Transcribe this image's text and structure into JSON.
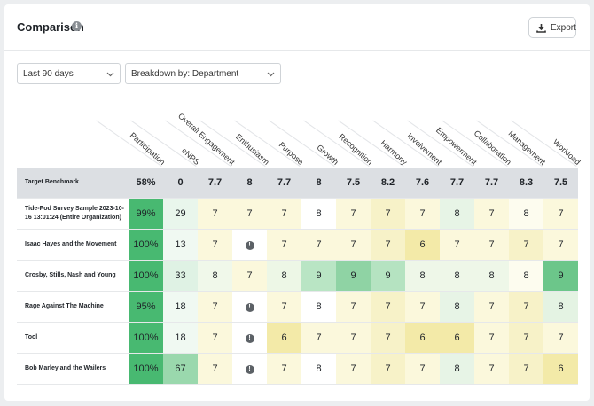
{
  "header": {
    "title": "Comparison",
    "export_label": "Export"
  },
  "filters": {
    "range": "Last 90 days",
    "breakdown": "Breakdown by: Department"
  },
  "columns": [
    "Participation",
    "eNPS",
    "Overall Engagement",
    "Enthusiasm",
    "Purpose",
    "Growth",
    "Recognition",
    "Harmony",
    "Involvement",
    "Empowerment",
    "Collaboration",
    "Management",
    "Workload"
  ],
  "benchmark": {
    "label": "Target Benchmark",
    "values": [
      "58%",
      "0",
      "7.7",
      "8",
      "7.7",
      "8",
      "7.5",
      "8.2",
      "7.6",
      "7.7",
      "7.7",
      "8.3",
      "7.5"
    ]
  },
  "rows": [
    {
      "label": "Tide-Pod Survey Sample 2023-10-16 13:01:24 (Entire Organization)",
      "values": [
        "99%",
        "29",
        "7",
        "7",
        "7",
        "8",
        "7",
        "7",
        "7",
        "8",
        "7",
        "8",
        "7"
      ]
    },
    {
      "label": "Isaac Hayes and the Movement",
      "values": [
        "100%",
        "13",
        "7",
        "!",
        "7",
        "7",
        "7",
        "7",
        "6",
        "7",
        "7",
        "7",
        "7"
      ]
    },
    {
      "label": "Crosby, Stills, Nash and Young",
      "values": [
        "100%",
        "33",
        "8",
        "7",
        "8",
        "9",
        "9",
        "9",
        "8",
        "8",
        "8",
        "8",
        "9"
      ]
    },
    {
      "label": "Rage Against The Machine",
      "values": [
        "95%",
        "18",
        "7",
        "!",
        "7",
        "8",
        "7",
        "7",
        "7",
        "8",
        "7",
        "7",
        "8"
      ]
    },
    {
      "label": "Tool",
      "values": [
        "100%",
        "18",
        "7",
        "!",
        "6",
        "7",
        "7",
        "7",
        "6",
        "6",
        "7",
        "7",
        "7"
      ]
    },
    {
      "label": "Bob Marley and the Wailers",
      "values": [
        "100%",
        "67",
        "7",
        "!",
        "7",
        "8",
        "7",
        "7",
        "7",
        "8",
        "7",
        "7",
        "6"
      ]
    }
  ],
  "cell_colors": [
    [
      "#48b971",
      "#e9f6ec",
      "#fbf8dc",
      "#fbf8dc",
      "#fbf8dc",
      "#ffffff",
      "#fbf8dc",
      "#f7f2c8",
      "#fbf8dc",
      "#e7f4e6",
      "#fbf8dc",
      "#fdfcef",
      "#fbf8dc"
    ],
    [
      "#48b971",
      "#f0f9f2",
      "#fbf8dc",
      "#ffffff",
      "#fbf8dc",
      "#fbf8dc",
      "#fbf8dc",
      "#f7f2c8",
      "#f3eaa8",
      "#fbf8dc",
      "#fbf8dc",
      "#f7f2c8",
      "#fbf8dc"
    ],
    [
      "#48b971",
      "#dff2e4",
      "#f0f8ea",
      "#fbf8dc",
      "#edf7e6",
      "#b9e5c4",
      "#8fd3a4",
      "#b5e3c1",
      "#eef7e8",
      "#eef7e8",
      "#eef7e8",
      "#fdfcef",
      "#6cc68a"
    ],
    [
      "#48b971",
      "#f0f9f2",
      "#fbf8dc",
      "#ffffff",
      "#fbf8dc",
      "#ffffff",
      "#fbf8dc",
      "#f7f2c8",
      "#fbf8dc",
      "#e7f4e6",
      "#fbf8dc",
      "#f7f2c8",
      "#e4f3e3"
    ],
    [
      "#48b971",
      "#f0f9f2",
      "#fbf8dc",
      "#ffffff",
      "#f3eaa8",
      "#fbf8dc",
      "#fbf8dc",
      "#f7f2c8",
      "#f3eaa8",
      "#f3eaa8",
      "#fbf8dc",
      "#f7f2c8",
      "#fbf8dc"
    ],
    [
      "#48b971",
      "#9ad8ad",
      "#fbf8dc",
      "#ffffff",
      "#fbf8dc",
      "#ffffff",
      "#fbf8dc",
      "#f7f2c8",
      "#fbf8dc",
      "#e7f4e6",
      "#fbf8dc",
      "#f7f2c8",
      "#f3eaa8"
    ]
  ]
}
